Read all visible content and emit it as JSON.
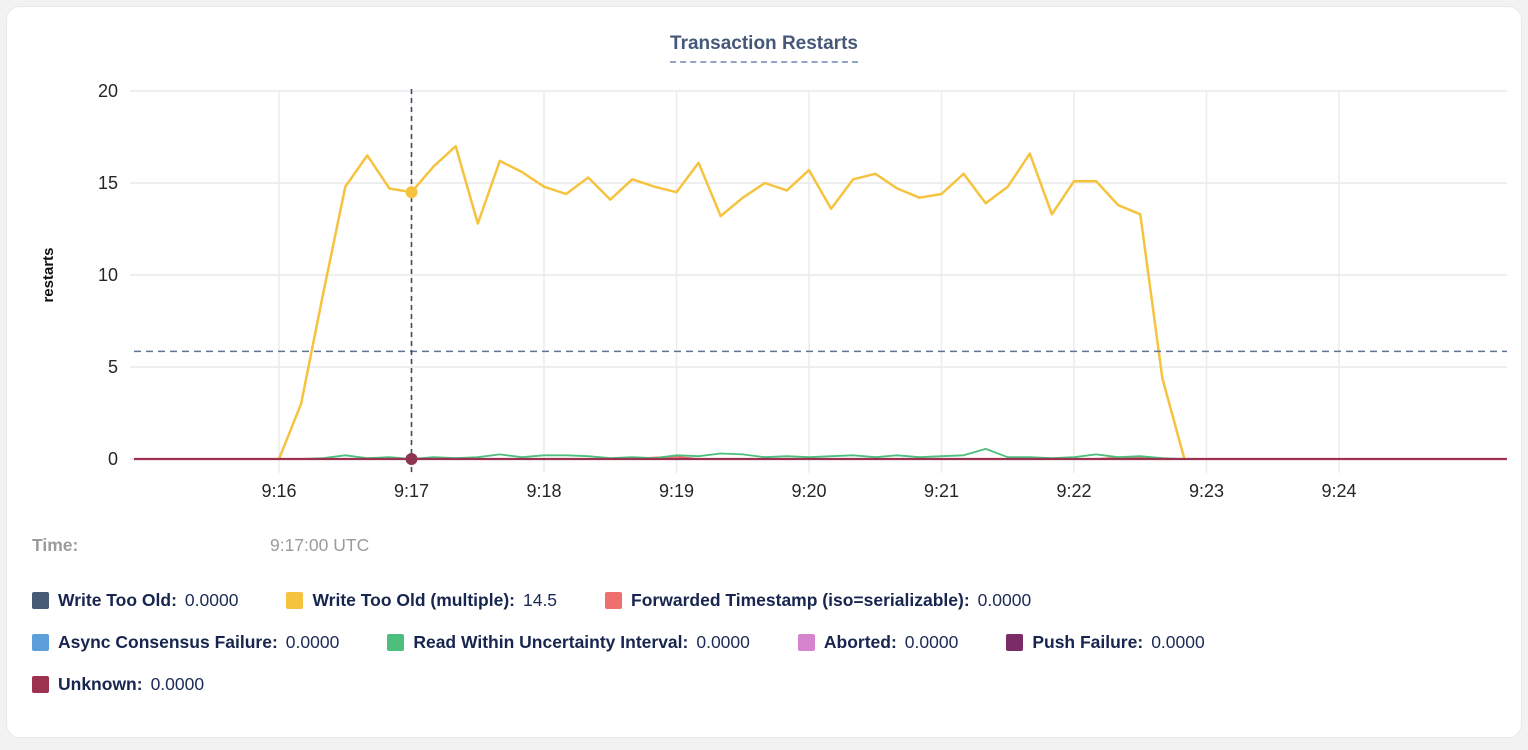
{
  "chart": {
    "title": "Transaction Restarts"
  },
  "time": {
    "label": "Time:",
    "value": "9:17:00 UTC"
  },
  "legend": {
    "rows": [
      [
        0,
        1,
        2
      ],
      [
        3,
        4,
        5,
        6
      ],
      [
        7
      ]
    ],
    "items": [
      {
        "label": "Write Too Old:",
        "value": "0.0000"
      },
      {
        "label": "Write Too Old (multiple):",
        "value": "14.5"
      },
      {
        "label": "Forwarded Timestamp (iso=serializable):",
        "value": "0.0000"
      },
      {
        "label": "Async Consensus Failure:",
        "value": "0.0000"
      },
      {
        "label": "Read Within Uncertainty Interval:",
        "value": "0.0000"
      },
      {
        "label": "Aborted:",
        "value": "0.0000"
      },
      {
        "label": "Push Failure:",
        "value": "0.0000"
      },
      {
        "label": "Unknown:",
        "value": "0.0000"
      }
    ]
  },
  "chart_data": {
    "type": "line",
    "title": "Transaction Restarts",
    "ylabel": "restarts",
    "ylim": [
      0,
      20
    ],
    "y_ticks": [
      0,
      5,
      10,
      15,
      20
    ],
    "x_ticks": [
      "9:16",
      "9:17",
      "9:18",
      "9:19",
      "9:20",
      "9:21",
      "9:22",
      "9:23",
      "9:24"
    ],
    "grid": true,
    "legend_position": "bottom",
    "hover": {
      "time": "9:17:00",
      "time_display": "9:17:00 UTC",
      "highlight_series": "Write Too Old (multiple)",
      "highlight_value": 14.5,
      "hline_value": 5.85
    },
    "sample_times": [
      "9:16:00",
      "9:16:10",
      "9:16:20",
      "9:16:30",
      "9:16:40",
      "9:16:50",
      "9:17:00",
      "9:17:10",
      "9:17:20",
      "9:17:30",
      "9:17:40",
      "9:17:50",
      "9:18:00",
      "9:18:10",
      "9:18:20",
      "9:18:30",
      "9:18:40",
      "9:18:50",
      "9:19:00",
      "9:19:10",
      "9:19:20",
      "9:19:30",
      "9:19:40",
      "9:19:50",
      "9:20:00",
      "9:20:10",
      "9:20:20",
      "9:20:30",
      "9:20:40",
      "9:20:50",
      "9:21:00",
      "9:21:10",
      "9:21:20",
      "9:21:30",
      "9:21:40",
      "9:21:50",
      "9:22:00",
      "9:22:10",
      "9:22:20",
      "9:22:30",
      "9:22:40",
      "9:22:50"
    ],
    "series": [
      {
        "name": "Write Too Old",
        "color": "#475b74",
        "values": "zero"
      },
      {
        "name": "Write Too Old (multiple)",
        "color": "#f6c33f",
        "values": [
          0,
          3.0,
          9.0,
          14.8,
          16.5,
          14.7,
          14.5,
          15.9,
          17.0,
          12.8,
          16.2,
          15.6,
          14.8,
          14.4,
          15.3,
          14.1,
          15.2,
          14.8,
          14.5,
          16.1,
          13.2,
          14.2,
          15.0,
          14.6,
          15.7,
          13.6,
          15.2,
          15.5,
          14.7,
          14.2,
          14.4,
          15.5,
          13.9,
          14.8,
          16.6,
          13.3,
          15.1,
          15.1,
          13.8,
          13.3,
          4.4,
          0
        ]
      },
      {
        "name": "Forwarded Timestamp (iso=serializable)",
        "color": "#ef6f6d",
        "values": [
          0,
          0,
          0,
          0,
          0,
          0,
          0,
          0,
          0,
          0,
          0,
          0,
          0,
          0,
          0,
          0,
          0,
          0.08,
          0.12,
          0,
          0,
          0,
          0,
          0,
          0,
          0,
          0,
          0,
          0,
          0,
          0,
          0,
          0,
          0,
          0,
          0,
          0,
          0,
          0.08,
          0.1,
          0,
          0
        ]
      },
      {
        "name": "Async Consensus Failure",
        "color": "#5c9fd9",
        "values": "zero"
      },
      {
        "name": "Read Within Uncertainty Interval",
        "color": "#4dbe7d",
        "values": [
          0,
          0,
          0.05,
          0.2,
          0.05,
          0.1,
          0,
          0.1,
          0.05,
          0.1,
          0.25,
          0.1,
          0.2,
          0.2,
          0.15,
          0.05,
          0.1,
          0.05,
          0.2,
          0.15,
          0.3,
          0.25,
          0.1,
          0.15,
          0.1,
          0.15,
          0.2,
          0.1,
          0.2,
          0.1,
          0.15,
          0.2,
          0.55,
          0.1,
          0.1,
          0.05,
          0.1,
          0.25,
          0.1,
          0.15,
          0.05,
          0
        ]
      },
      {
        "name": "Aborted",
        "color": "#d784cf",
        "values": "zero"
      },
      {
        "name": "Push Failure",
        "color": "#7a2c66",
        "values": "zero"
      },
      {
        "name": "Unknown",
        "color": "#9c3150",
        "values": "zero"
      }
    ]
  }
}
